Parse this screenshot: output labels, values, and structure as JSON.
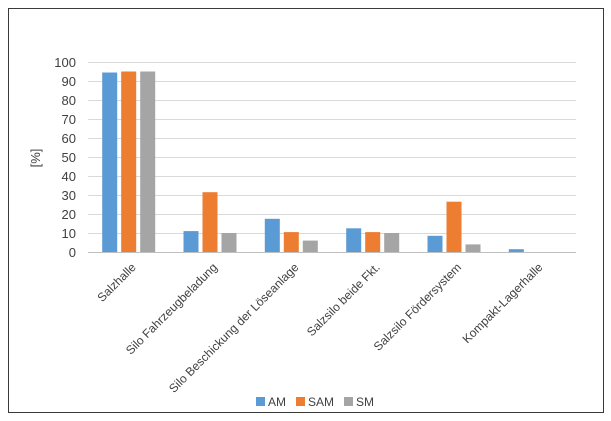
{
  "chart_data": {
    "type": "bar",
    "title": "",
    "xlabel": "",
    "ylabel": "[%]",
    "ylim": [
      0,
      100
    ],
    "yticks": [
      0,
      10,
      20,
      30,
      40,
      50,
      60,
      70,
      80,
      90,
      100
    ],
    "grid": true,
    "legend_position": "bottom",
    "categories": [
      "Salzhalle",
      "Silo Fahrzeugbeladung",
      "Silo Beschickung der Löseanlage",
      "Salzsilo beide Fkt.",
      "Salzsilo Fördersystem",
      "Kompakt-Lagerhalle"
    ],
    "series": [
      {
        "name": "AM",
        "color": "#5B9BD5",
        "values": [
          94.5,
          11,
          17.5,
          12.5,
          8.5,
          1.5
        ]
      },
      {
        "name": "SAM",
        "color": "#ED7D31",
        "values": [
          95,
          31.5,
          10.5,
          10.5,
          26.5,
          0
        ]
      },
      {
        "name": "SM",
        "color": "#A5A5A5",
        "values": [
          95,
          10,
          6,
          10,
          4,
          0
        ]
      }
    ]
  }
}
